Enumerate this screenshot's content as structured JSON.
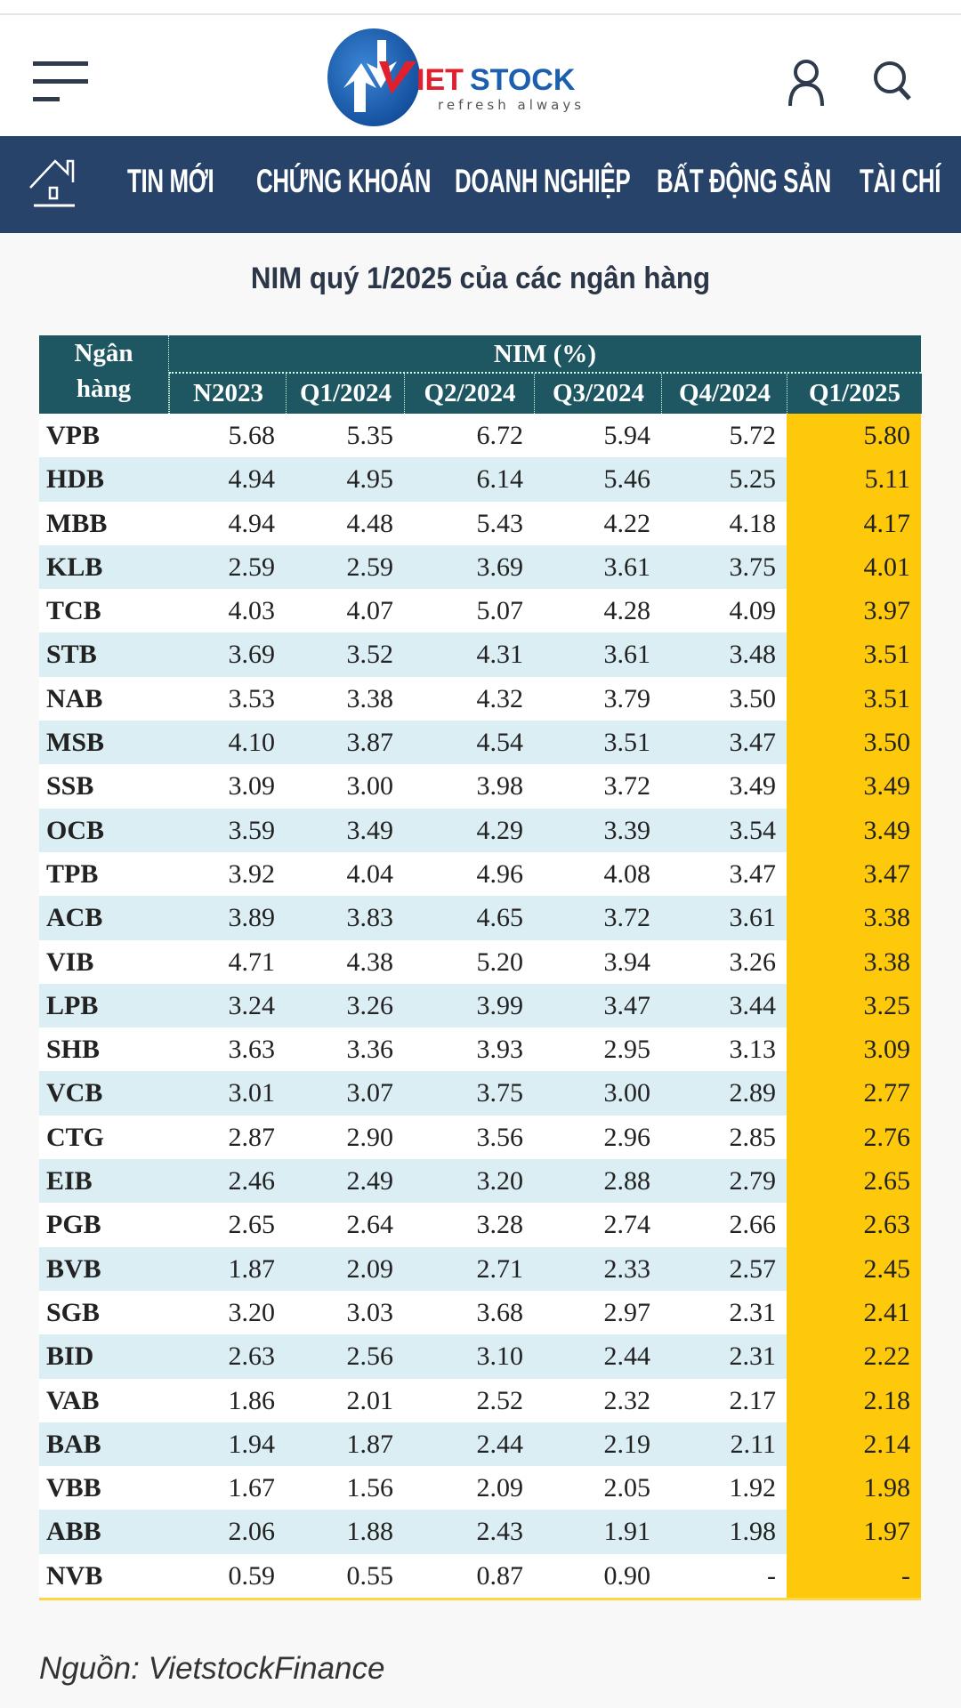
{
  "header": {
    "logo_text": "VIETSTOCK",
    "logo_tagline": "refresh always",
    "icons": [
      "menu-icon",
      "user-icon",
      "search-icon"
    ],
    "brand_colors": {
      "blue": "#1b5fae",
      "red": "#e21f2d",
      "nav": "#28436a"
    }
  },
  "nav": {
    "items": [
      "TIN MỚI",
      "CHỨNG KHOÁN",
      "DOANH NGHIỆP",
      "BẤT ĐỘNG SẢN",
      "TÀI CHÍ"
    ]
  },
  "article": {
    "title": "NIM quý 1/2025 của các ngân hàng",
    "source": "Nguồn: VietstockFinance"
  },
  "table": {
    "bank_header_line1": "Ngân",
    "bank_header_line2": "hàng",
    "group_header": "NIM (%)",
    "columns": [
      "N2023",
      "Q1/2024",
      "Q2/2024",
      "Q3/2024",
      "Q4/2024",
      "Q1/2025"
    ],
    "highlight_color": "#ffc90b",
    "header_color": "#1e5762",
    "rows": [
      [
        "VPB",
        "5.68",
        "5.35",
        "6.72",
        "5.94",
        "5.72",
        "5.80"
      ],
      [
        "HDB",
        "4.94",
        "4.95",
        "6.14",
        "5.46",
        "5.25",
        "5.11"
      ],
      [
        "MBB",
        "4.94",
        "4.48",
        "5.43",
        "4.22",
        "4.18",
        "4.17"
      ],
      [
        "KLB",
        "2.59",
        "2.59",
        "3.69",
        "3.61",
        "3.75",
        "4.01"
      ],
      [
        "TCB",
        "4.03",
        "4.07",
        "5.07",
        "4.28",
        "4.09",
        "3.97"
      ],
      [
        "STB",
        "3.69",
        "3.52",
        "4.31",
        "3.61",
        "3.48",
        "3.51"
      ],
      [
        "NAB",
        "3.53",
        "3.38",
        "4.32",
        "3.79",
        "3.50",
        "3.51"
      ],
      [
        "MSB",
        "4.10",
        "3.87",
        "4.54",
        "3.51",
        "3.47",
        "3.50"
      ],
      [
        "SSB",
        "3.09",
        "3.00",
        "3.98",
        "3.72",
        "3.49",
        "3.49"
      ],
      [
        "OCB",
        "3.59",
        "3.49",
        "4.29",
        "3.39",
        "3.54",
        "3.49"
      ],
      [
        "TPB",
        "3.92",
        "4.04",
        "4.96",
        "4.08",
        "3.47",
        "3.47"
      ],
      [
        "ACB",
        "3.89",
        "3.83",
        "4.65",
        "3.72",
        "3.61",
        "3.38"
      ],
      [
        "VIB",
        "4.71",
        "4.38",
        "5.20",
        "3.94",
        "3.26",
        "3.38"
      ],
      [
        "LPB",
        "3.24",
        "3.26",
        "3.99",
        "3.47",
        "3.44",
        "3.25"
      ],
      [
        "SHB",
        "3.63",
        "3.36",
        "3.93",
        "2.95",
        "3.13",
        "3.09"
      ],
      [
        "VCB",
        "3.01",
        "3.07",
        "3.75",
        "3.00",
        "2.89",
        "2.77"
      ],
      [
        "CTG",
        "2.87",
        "2.90",
        "3.56",
        "2.96",
        "2.85",
        "2.76"
      ],
      [
        "EIB",
        "2.46",
        "2.49",
        "3.20",
        "2.88",
        "2.79",
        "2.65"
      ],
      [
        "PGB",
        "2.65",
        "2.64",
        "3.28",
        "2.74",
        "2.66",
        "2.63"
      ],
      [
        "BVB",
        "1.87",
        "2.09",
        "2.71",
        "2.33",
        "2.57",
        "2.45"
      ],
      [
        "SGB",
        "3.20",
        "3.03",
        "3.68",
        "2.97",
        "2.31",
        "2.41"
      ],
      [
        "BID",
        "2.63",
        "2.56",
        "3.10",
        "2.44",
        "2.31",
        "2.22"
      ],
      [
        "VAB",
        "1.86",
        "2.01",
        "2.52",
        "2.32",
        "2.17",
        "2.18"
      ],
      [
        "BAB",
        "1.94",
        "1.87",
        "2.44",
        "2.19",
        "2.11",
        "2.14"
      ],
      [
        "VBB",
        "1.67",
        "1.56",
        "2.09",
        "2.05",
        "1.92",
        "1.98"
      ],
      [
        "ABB",
        "2.06",
        "1.88",
        "2.43",
        "1.91",
        "1.98",
        "1.97"
      ],
      [
        "NVB",
        "0.59",
        "0.55",
        "0.87",
        "0.90",
        "-",
        "-"
      ]
    ]
  }
}
